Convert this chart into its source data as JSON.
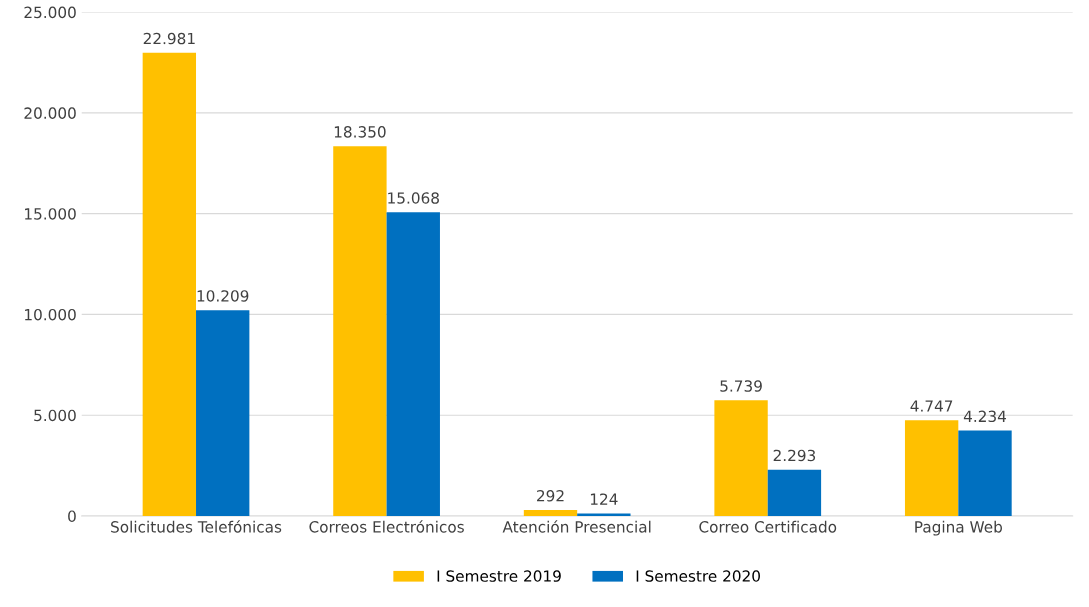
{
  "chart_data": {
    "type": "bar",
    "categories": [
      "Solicitudes Telefónicas",
      "Correos Electrónicos",
      "Atención Presencial",
      "Correo Certificado",
      "Pagina Web"
    ],
    "series": [
      {
        "name": "I Semestre 2019",
        "color": "#ffc000",
        "values": [
          22981,
          18350,
          292,
          5739,
          4747
        ],
        "value_labels": [
          "22.981",
          "18.350",
          "292",
          "5.739",
          "4.747"
        ]
      },
      {
        "name": "I Semestre 2020",
        "color": "#0070c0",
        "values": [
          10209,
          15068,
          124,
          2293,
          4234
        ],
        "value_labels": [
          "10.209",
          "15.068",
          "124",
          "2.293",
          "4.234"
        ]
      }
    ],
    "ylim": [
      0,
      25000
    ],
    "yticks": [
      {
        "value": 0,
        "label": "0"
      },
      {
        "value": 5000,
        "label": "5.000"
      },
      {
        "value": 10000,
        "label": "10.000"
      },
      {
        "value": 15000,
        "label": "15.000"
      },
      {
        "value": 20000,
        "label": "20.000"
      },
      {
        "value": 25000,
        "label": "25.000"
      }
    ],
    "grid": "y",
    "legend": "bottom"
  }
}
